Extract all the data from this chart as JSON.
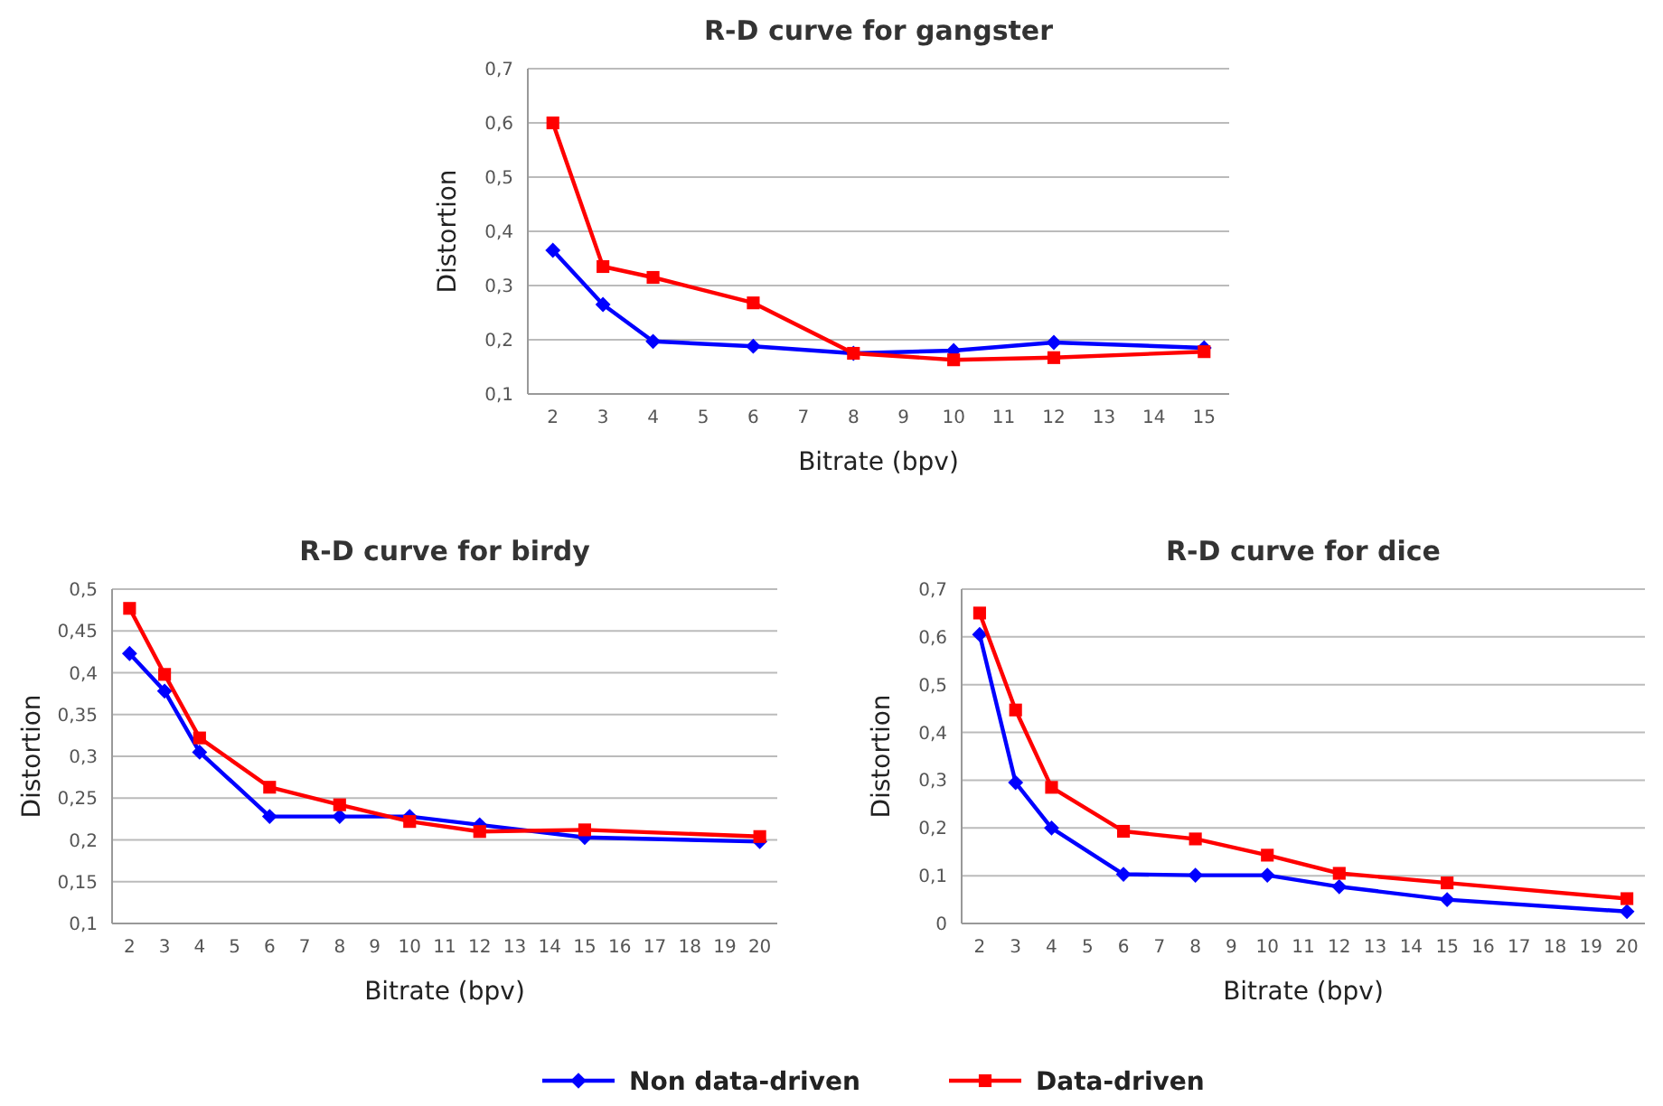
{
  "chart_data": [
    {
      "type": "line",
      "title": "R-D curve for gangster",
      "xlabel": "Bitrate (bpv)",
      "ylabel": "Distortion",
      "xlim": [
        1.5,
        15.5
      ],
      "xticks": [
        2,
        3,
        4,
        5,
        6,
        7,
        8,
        9,
        10,
        11,
        12,
        13,
        14,
        15
      ],
      "ylim": [
        0.1,
        0.7
      ],
      "yticks": [
        {
          "value": 0.1,
          "label": "0,1"
        },
        {
          "value": 0.2,
          "label": "0,2"
        },
        {
          "value": 0.3,
          "label": "0,3"
        },
        {
          "value": 0.4,
          "label": "0,4"
        },
        {
          "value": 0.5,
          "label": "0,5"
        },
        {
          "value": 0.6,
          "label": "0,6"
        },
        {
          "value": 0.7,
          "label": "0,7"
        }
      ],
      "grid": "y",
      "legend": "bottom",
      "x": [
        2,
        3,
        4,
        6,
        8,
        10,
        12,
        15
      ],
      "series": [
        {
          "name": "Non data-driven",
          "color": "#0000ff",
          "marker": "diamond",
          "values": [
            0.365,
            0.265,
            0.197,
            0.188,
            0.175,
            0.18,
            0.195,
            0.185
          ]
        },
        {
          "name": "Data-driven",
          "color": "#ff0000",
          "marker": "square",
          "values": [
            0.6,
            0.335,
            0.315,
            0.268,
            0.175,
            0.163,
            0.167,
            0.178
          ]
        }
      ]
    },
    {
      "type": "line",
      "title": "R-D curve for birdy",
      "xlabel": "Bitrate (bpv)",
      "ylabel": "Distortion",
      "xlim": [
        1.5,
        20.5
      ],
      "xticks": [
        2,
        3,
        4,
        5,
        6,
        7,
        8,
        9,
        10,
        11,
        12,
        13,
        14,
        15,
        16,
        17,
        18,
        19,
        20
      ],
      "ylim": [
        0.1,
        0.5
      ],
      "yticks": [
        {
          "value": 0.1,
          "label": "0,1"
        },
        {
          "value": 0.15,
          "label": "0,15"
        },
        {
          "value": 0.2,
          "label": "0,2"
        },
        {
          "value": 0.25,
          "label": "0,25"
        },
        {
          "value": 0.3,
          "label": "0,3"
        },
        {
          "value": 0.35,
          "label": "0,35"
        },
        {
          "value": 0.4,
          "label": "0,4"
        },
        {
          "value": 0.45,
          "label": "0,45"
        },
        {
          "value": 0.5,
          "label": "0,5"
        }
      ],
      "grid": "y",
      "x": [
        2,
        3,
        4,
        6,
        8,
        10,
        12,
        15,
        20
      ],
      "series": [
        {
          "color": "#0000ff",
          "marker": "diamond",
          "values": [
            0.423,
            0.378,
            0.305,
            0.228,
            0.228,
            0.228,
            0.218,
            0.203,
            0.198
          ]
        },
        {
          "color": "#ff0000",
          "marker": "square",
          "values": [
            0.477,
            0.398,
            0.322,
            0.263,
            0.242,
            0.222,
            0.21,
            0.212,
            0.204
          ]
        }
      ]
    },
    {
      "type": "line",
      "title": "R-D curve for dice",
      "xlabel": "Bitrate (bpv)",
      "ylabel": "Distortion",
      "xlim": [
        1.5,
        20.5
      ],
      "xticks": [
        2,
        3,
        4,
        5,
        6,
        7,
        8,
        9,
        10,
        11,
        12,
        13,
        14,
        15,
        16,
        17,
        18,
        19,
        20
      ],
      "ylim": [
        0,
        0.7
      ],
      "yticks": [
        0,
        {
          "value": 0.1,
          "label": "0,1"
        },
        {
          "value": 0.2,
          "label": "0,2"
        },
        {
          "value": 0.3,
          "label": "0,3"
        },
        {
          "value": 0.4,
          "label": "0,4"
        },
        {
          "value": 0.5,
          "label": "0,5"
        },
        {
          "value": 0.6,
          "label": "0,6"
        },
        {
          "value": 0.7,
          "label": "0,7"
        }
      ],
      "grid": "y",
      "x": [
        2,
        3,
        4,
        6,
        8,
        10,
        12,
        15,
        20
      ],
      "series": [
        {
          "color": "#0000ff",
          "marker": "diamond",
          "values": [
            0.605,
            0.295,
            0.2,
            0.103,
            0.101,
            0.101,
            0.077,
            0.05,
            0.025
          ]
        },
        {
          "color": "#ff0000",
          "marker": "square",
          "values": [
            0.65,
            0.447,
            0.285,
            0.193,
            0.177,
            0.143,
            0.105,
            0.085,
            0.052
          ]
        }
      ]
    }
  ]
}
